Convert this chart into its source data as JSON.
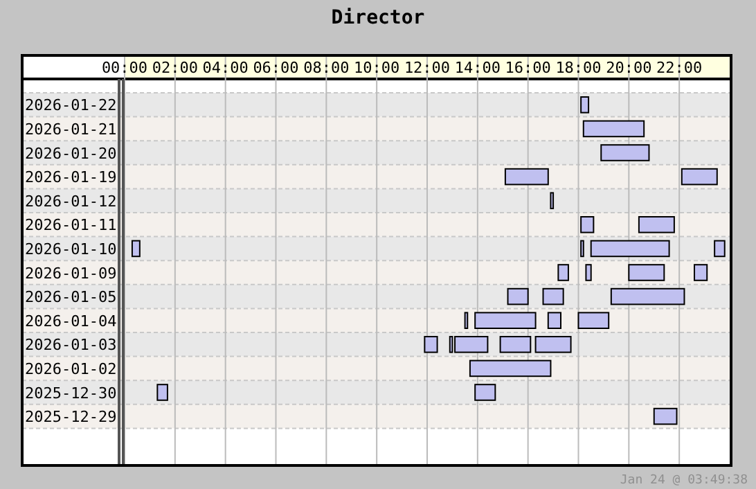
{
  "chart_data": {
    "type": "bar",
    "orientation": "horizontal",
    "title": "Director",
    "categories": [
      "2026-01-22",
      "2026-01-21",
      "2026-01-20",
      "2026-01-19",
      "2026-01-12",
      "2026-01-11",
      "2026-01-10",
      "2026-01-09",
      "2026-01-05",
      "2026-01-04",
      "2026-01-03",
      "2026-01-02",
      "2025-12-30",
      "2025-12-29"
    ],
    "series": [
      {
        "color": "#c0c0f0",
        "base": [
          18.1,
          18.2,
          18.9,
          15.1,
          16.9,
          18.1,
          0.3,
          17.2,
          15.2,
          13.5,
          11.9,
          13.7,
          1.3,
          21.0
        ],
        "values": [
          0.3,
          2.4,
          1.9,
          1.7,
          0.1,
          0.5,
          0.3,
          0.4,
          0.8,
          0.1,
          0.5,
          3.2,
          0.4,
          0.9
        ]
      },
      {
        "color": "#c0c0f0",
        "base": [
          null,
          null,
          null,
          22.1,
          null,
          20.4,
          18.1,
          18.3,
          16.6,
          13.9,
          12.9,
          null,
          13.9,
          null
        ],
        "values": [
          null,
          null,
          null,
          1.4,
          null,
          1.4,
          0.1,
          0.2,
          0.8,
          2.4,
          0.1,
          null,
          0.8,
          null
        ]
      },
      {
        "color": "#c0c0f0",
        "base": [
          null,
          null,
          null,
          null,
          null,
          null,
          18.5,
          20.0,
          19.3,
          16.8,
          13.1,
          null,
          null,
          null
        ],
        "values": [
          null,
          null,
          null,
          null,
          null,
          null,
          3.1,
          1.4,
          2.9,
          0.5,
          1.3,
          null,
          null,
          null
        ]
      },
      {
        "color": "#c0c0f0",
        "base": [
          null,
          null,
          null,
          null,
          null,
          null,
          23.4,
          22.6,
          null,
          18.0,
          14.9,
          null,
          null,
          null
        ],
        "values": [
          null,
          null,
          null,
          null,
          null,
          null,
          0.4,
          0.5,
          null,
          1.2,
          1.2,
          null,
          null,
          null
        ]
      },
      {
        "color": "#c0c0f0",
        "base": [
          null,
          null,
          null,
          null,
          null,
          null,
          null,
          null,
          null,
          null,
          16.3,
          null,
          null,
          null
        ],
        "values": [
          null,
          null,
          null,
          null,
          null,
          null,
          null,
          null,
          null,
          null,
          1.4,
          null,
          null,
          null
        ]
      }
    ],
    "xlim": [
      0,
      24
    ],
    "xticks": [
      {
        "value": 0,
        "label": "00:00"
      },
      {
        "value": 2,
        "label": "02:00"
      },
      {
        "value": 4,
        "label": "04:00"
      },
      {
        "value": 6,
        "label": "06:00"
      },
      {
        "value": 8,
        "label": "08:00"
      },
      {
        "value": 10,
        "label": "10:00"
      },
      {
        "value": 12,
        "label": "12:00"
      },
      {
        "value": 14,
        "label": "14:00"
      },
      {
        "value": 16,
        "label": "16:00"
      },
      {
        "value": 18,
        "label": "18:00"
      },
      {
        "value": 20,
        "label": "20:00"
      },
      {
        "value": 22,
        "label": "22:00"
      }
    ],
    "grid": "x",
    "annotations": [
      "Jan 24 @ 03:49:38"
    ]
  }
}
